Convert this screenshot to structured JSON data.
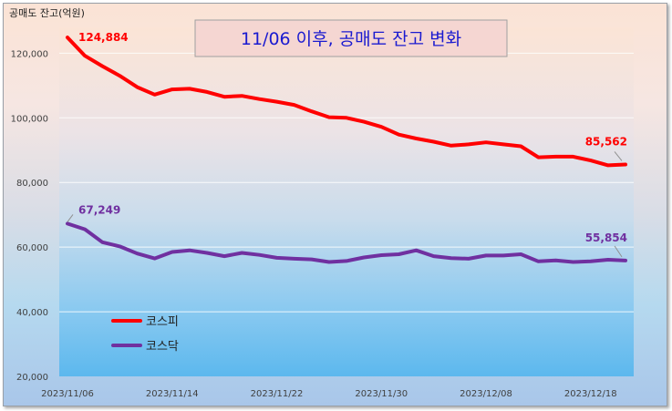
{
  "chart_data": {
    "type": "line",
    "title": "11/06 이후, 공매도 잔고 변화",
    "ylabel": "공매도 잔고(억원)",
    "ylim": [
      20000,
      125000
    ],
    "yticks": [
      "20,000",
      "40,000",
      "60,000",
      "80,000",
      "100,000",
      "120,000"
    ],
    "xticks": [
      "2023/11/06",
      "2023/11/14",
      "2023/11/22",
      "2023/11/30",
      "2023/12/08",
      "2023/12/18"
    ],
    "legend_position": "lower-left",
    "grid": true,
    "series": [
      {
        "name": "코스피",
        "color": "#ff0000",
        "start_label": "124,884",
        "end_label": "85,562",
        "values": [
          124884,
          119200,
          116000,
          113000,
          109500,
          107200,
          108800,
          109000,
          108000,
          106500,
          106800,
          105800,
          105000,
          104000,
          102000,
          100200,
          100000,
          98800,
          97200,
          94800,
          93600,
          92600,
          91400,
          91800,
          92400,
          91800,
          91200,
          87800,
          88000,
          88000,
          86800,
          85300,
          85562
        ]
      },
      {
        "name": "코스닥",
        "color": "#7030a0",
        "start_label": "67,249",
        "end_label": "55,854",
        "values": [
          67249,
          65500,
          61500,
          60200,
          58000,
          56500,
          58500,
          59000,
          58200,
          57200,
          58200,
          57600,
          56700,
          56400,
          56200,
          55400,
          55700,
          56800,
          57500,
          57800,
          59000,
          57200,
          56600,
          56400,
          57400,
          57400,
          57800,
          55600,
          55900,
          55400,
          55600,
          56100,
          55854
        ]
      }
    ]
  }
}
